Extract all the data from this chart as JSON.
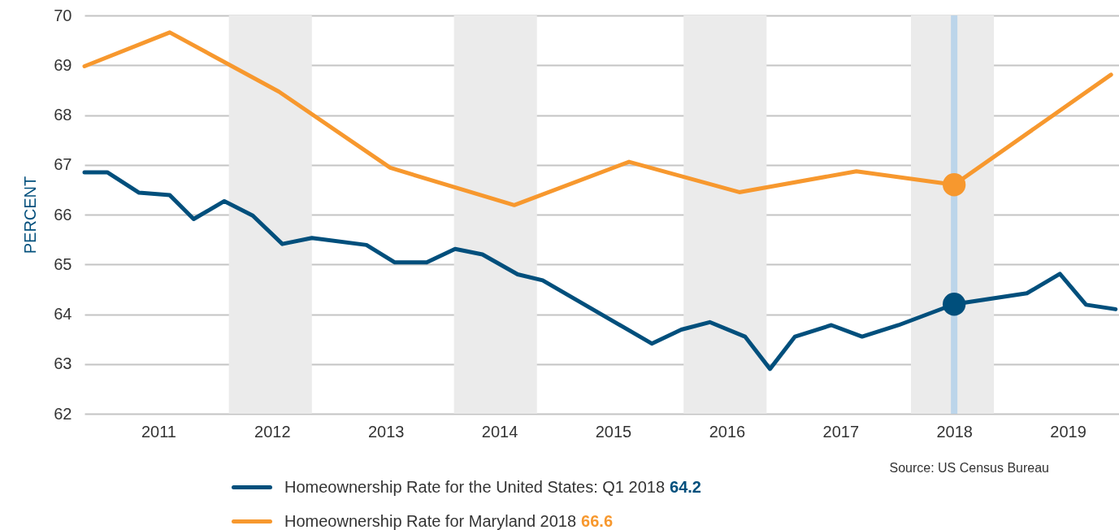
{
  "chart_data": {
    "type": "line",
    "ylabel": "PERCENT",
    "xlim": [
      2010.35,
      2019.45
    ],
    "xticks": [
      2011,
      2012,
      2013,
      2014,
      2015,
      2016,
      2017,
      2018,
      2019
    ],
    "ylim": [
      62,
      70
    ],
    "yticks": [
      62,
      63,
      64,
      65,
      66,
      67,
      68,
      69,
      70
    ],
    "grid": "y",
    "legend": "bottom",
    "line_style": "solid",
    "series": [
      {
        "name": "Homeownership Rate for the United States: Q1 2018",
        "color": "#004f7c",
        "x": [
          2010.35,
          2010.55,
          2010.83,
          2011.1,
          2011.31,
          2011.58,
          2011.83,
          2012.09,
          2012.35,
          2012.83,
          2013.08,
          2013.36,
          2013.61,
          2013.85,
          2014.16,
          2014.38,
          2015.34,
          2015.6,
          2015.85,
          2016.16,
          2016.38,
          2016.6,
          2016.92,
          2017.19,
          2017.51,
          2018,
          2018.64,
          2018.93,
          2019.16,
          2019.42
        ],
        "values": [
          66.85,
          66.85,
          66.44,
          66.39,
          65.91,
          66.27,
          65.98,
          65.41,
          65.53,
          65.39,
          65.04,
          65.04,
          65.31,
          65.2,
          64.8,
          64.68,
          63.41,
          63.69,
          63.84,
          63.55,
          62.9,
          63.55,
          63.78,
          63.55,
          63.78,
          64.2,
          64.42,
          64.81,
          64.19,
          64.1
        ]
      },
      {
        "name": "Homeownership Rate for Maryland 2018",
        "color": "#f7982e",
        "x": [
          2010.35,
          2011.1,
          2012.06,
          2013.04,
          2014.13,
          2015.14,
          2016.11,
          2017.14,
          2018,
          2019.38
        ],
        "values": [
          68.98,
          69.66,
          68.47,
          66.94,
          66.19,
          67.06,
          66.45,
          66.87,
          66.6,
          68.81
        ]
      },
      {
        "type": "scatter",
        "color": "#004f7c",
        "x": [
          2018
        ],
        "values": [
          64.2
        ]
      },
      {
        "type": "scatter",
        "color": "#f7982e",
        "x": [
          2018
        ],
        "values": [
          66.6
        ]
      }
    ],
    "annotations": [
      "64.2",
      "66.6",
      "Source: US Census Bureau"
    ],
    "ref_lines": [
      {
        "axis": "x",
        "value": 2018,
        "color": "#bcd5ea"
      }
    ],
    "bands": [
      {
        "axis": "x",
        "from": 2011.62,
        "to": 2012.35,
        "color": "#ebebeb"
      },
      {
        "axis": "x",
        "from": 2013.6,
        "to": 2014.33,
        "color": "#ebebeb"
      },
      {
        "axis": "x",
        "from": 2015.62,
        "to": 2016.35,
        "color": "#ebebeb"
      },
      {
        "axis": "x",
        "from": 2017.62,
        "to": 2018.35,
        "color": "#ebebeb"
      }
    ]
  }
}
